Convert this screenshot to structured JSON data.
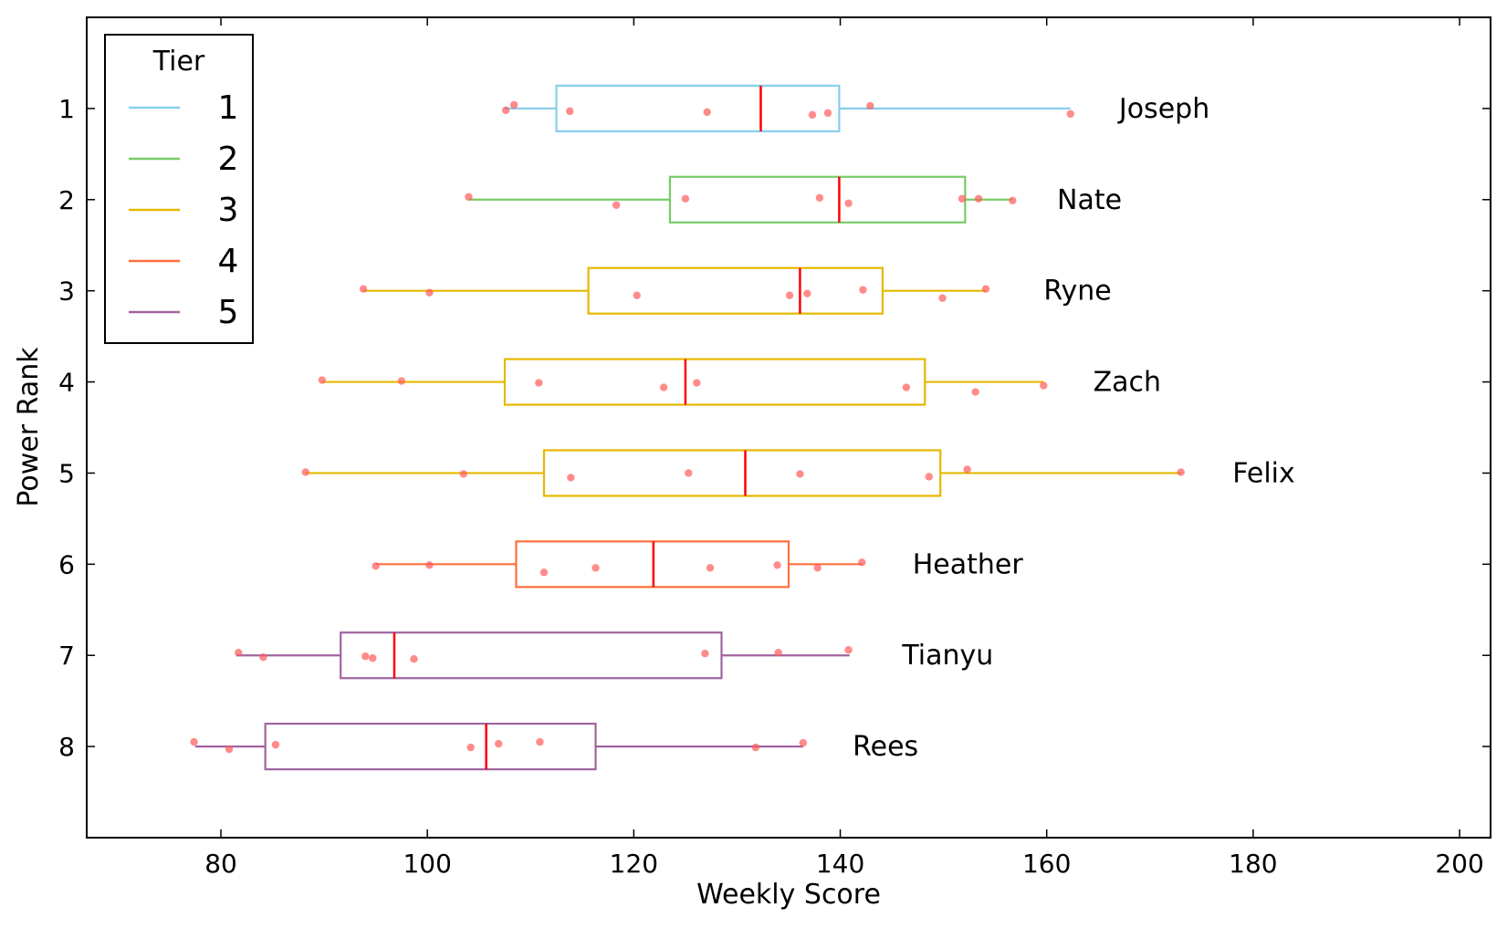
{
  "chart_data": {
    "type": "boxplot",
    "orientation": "horizontal",
    "xlabel": "Weekly Score",
    "ylabel": "Power Rank",
    "xlim": [
      67,
      203
    ],
    "ylim": [
      9,
      0
    ],
    "xticks": [
      80,
      100,
      120,
      140,
      160,
      180,
      200
    ],
    "yticks": [
      1,
      2,
      3,
      4,
      5,
      6,
      7,
      8
    ],
    "grid": false,
    "legend": {
      "title": "Tier",
      "placement": "top-left",
      "entries": [
        {
          "label": "1",
          "color": "#87ceeb"
        },
        {
          "label": "2",
          "color": "#77cc66"
        },
        {
          "label": "3",
          "color": "#e6b800"
        },
        {
          "label": "4",
          "color": "#ff6f3c"
        },
        {
          "label": "5",
          "color": "#a0649f"
        }
      ]
    },
    "median_color": "#ff0000",
    "point_color": "#ff5a5a",
    "series": [
      {
        "name": "Joseph",
        "rank": 1,
        "tier": 1,
        "whisker_low": 107.5,
        "q1": 112.5,
        "median": 132.3,
        "q3": 139.9,
        "whisker_high": 162.3,
        "label_x": 167,
        "points": [
          [
            107.6,
            1.02
          ],
          [
            108.4,
            0.96
          ],
          [
            113.8,
            1.03
          ],
          [
            127.1,
            1.04
          ],
          [
            137.3,
            1.07
          ],
          [
            138.8,
            1.05
          ],
          [
            142.9,
            0.97
          ],
          [
            162.3,
            1.06
          ]
        ]
      },
      {
        "name": "Nate",
        "rank": 2,
        "tier": 2,
        "whisker_low": 104.0,
        "q1": 123.5,
        "median": 139.9,
        "q3": 152.1,
        "whisker_high": 156.7,
        "label_x": 161,
        "points": [
          [
            104.0,
            1.97
          ],
          [
            118.3,
            2.06
          ],
          [
            125.0,
            1.99
          ],
          [
            138.0,
            1.98
          ],
          [
            140.8,
            2.04
          ],
          [
            151.8,
            1.99
          ],
          [
            153.4,
            1.99
          ],
          [
            156.7,
            2.01
          ]
        ]
      },
      {
        "name": "Ryne",
        "rank": 3,
        "tier": 3,
        "whisker_low": 93.8,
        "q1": 115.6,
        "median": 136.1,
        "q3": 144.1,
        "whisker_high": 154.1,
        "label_x": 159.7,
        "points": [
          [
            93.8,
            2.98
          ],
          [
            100.2,
            3.02
          ],
          [
            120.3,
            3.05
          ],
          [
            135.1,
            3.05
          ],
          [
            136.8,
            3.03
          ],
          [
            142.2,
            2.99
          ],
          [
            149.9,
            3.08
          ],
          [
            154.1,
            2.98
          ]
        ]
      },
      {
        "name": "Zach",
        "rank": 4,
        "tier": 3,
        "whisker_low": 89.8,
        "q1": 107.5,
        "median": 125.0,
        "q3": 148.2,
        "whisker_high": 159.7,
        "label_x": 164.5,
        "points": [
          [
            89.8,
            3.98
          ],
          [
            97.5,
            3.99
          ],
          [
            110.8,
            4.01
          ],
          [
            122.9,
            4.06
          ],
          [
            126.1,
            4.01
          ],
          [
            146.4,
            4.06
          ],
          [
            153.1,
            4.11
          ],
          [
            159.7,
            4.04
          ]
        ]
      },
      {
        "name": "Felix",
        "rank": 5,
        "tier": 3,
        "whisker_low": 88.2,
        "q1": 111.3,
        "median": 130.8,
        "q3": 149.7,
        "whisker_high": 173.0,
        "label_x": 178,
        "points": [
          [
            88.2,
            4.99
          ],
          [
            103.5,
            5.01
          ],
          [
            113.9,
            5.05
          ],
          [
            125.3,
            5.0
          ],
          [
            136.1,
            5.01
          ],
          [
            148.6,
            5.04
          ],
          [
            152.3,
            4.96
          ],
          [
            173.0,
            4.99
          ]
        ]
      },
      {
        "name": "Heather",
        "rank": 6,
        "tier": 4,
        "whisker_low": 95.0,
        "q1": 108.6,
        "median": 121.9,
        "q3": 135.0,
        "whisker_high": 142.1,
        "label_x": 147,
        "points": [
          [
            95.0,
            6.02
          ],
          [
            100.2,
            6.01
          ],
          [
            111.3,
            6.09
          ],
          [
            116.3,
            6.04
          ],
          [
            127.4,
            6.04
          ],
          [
            133.9,
            6.01
          ],
          [
            137.8,
            6.04
          ],
          [
            142.1,
            5.98
          ]
        ]
      },
      {
        "name": "Tianyu",
        "rank": 7,
        "tier": 5,
        "whisker_low": 81.5,
        "q1": 91.6,
        "median": 96.8,
        "q3": 128.5,
        "whisker_high": 140.9,
        "label_x": 146,
        "points": [
          [
            81.7,
            6.97
          ],
          [
            84.1,
            7.02
          ],
          [
            94.0,
            7.01
          ],
          [
            94.7,
            7.03
          ],
          [
            98.7,
            7.04
          ],
          [
            126.9,
            6.98
          ],
          [
            134.0,
            6.97
          ],
          [
            140.8,
            6.94
          ]
        ]
      },
      {
        "name": "Rees",
        "rank": 8,
        "tier": 5,
        "whisker_low": 77.5,
        "q1": 84.3,
        "median": 105.7,
        "q3": 116.3,
        "whisker_high": 136.4,
        "label_x": 141.2,
        "points": [
          [
            77.4,
            7.95
          ],
          [
            80.8,
            8.03
          ],
          [
            85.3,
            7.98
          ],
          [
            104.2,
            8.01
          ],
          [
            106.9,
            7.97
          ],
          [
            110.9,
            7.95
          ],
          [
            131.8,
            8.01
          ],
          [
            136.4,
            7.96
          ]
        ]
      }
    ]
  }
}
